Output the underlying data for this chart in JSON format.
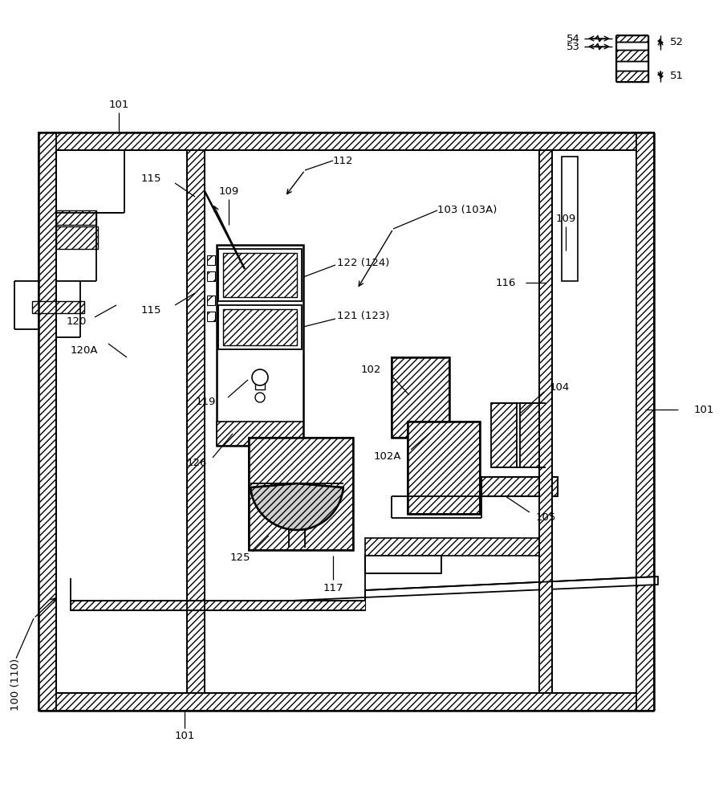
{
  "bg_color": "#ffffff",
  "line_color": "#000000",
  "fig_width": 9.06,
  "fig_height": 10.0,
  "labels": {
    "100_110": "100 (110)",
    "101": "101",
    "102": "102",
    "102A": "102A",
    "103_103A": "103 (103A)",
    "104": "104",
    "105": "105",
    "109": "109",
    "112": "112",
    "115": "115",
    "116": "116",
    "117": "117",
    "119": "119",
    "120": "120",
    "120A": "120A",
    "121_123": "121 (123)",
    "122_124": "122 (124)",
    "125": "125",
    "126": "126",
    "51": "51",
    "52": "52",
    "53": "53",
    "54": "54"
  }
}
